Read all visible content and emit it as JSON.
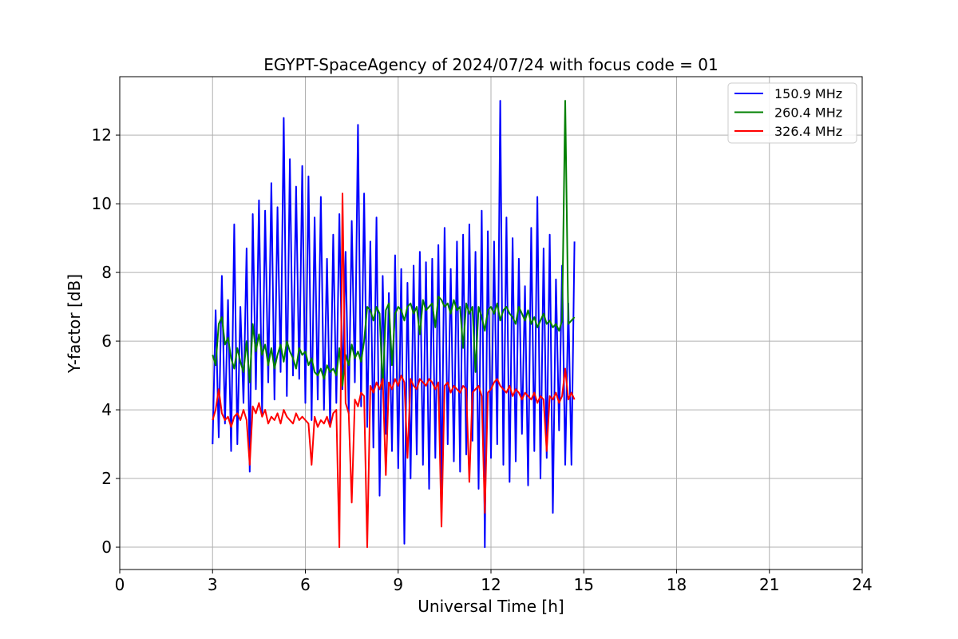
{
  "chart_data": {
    "type": "line",
    "title": "EGYPT-SpaceAgency of 2024/07/24 with focus code = 01",
    "xlabel": "Universal Time [h]",
    "ylabel": "Y-factor [dB]",
    "xlim": [
      0,
      24
    ],
    "ylim": [
      -0.65,
      13.7
    ],
    "xticks": [
      0,
      3,
      6,
      9,
      12,
      15,
      18,
      21,
      24
    ],
    "yticks": [
      0,
      2,
      4,
      6,
      8,
      10,
      12
    ],
    "grid": true,
    "legend_position": "top-right",
    "series": [
      {
        "name": "150.9 MHz",
        "color": "#0000ff",
        "x": [
          3.0,
          3.1,
          3.2,
          3.3,
          3.4,
          3.5,
          3.6,
          3.7,
          3.8,
          3.9,
          4.0,
          4.1,
          4.2,
          4.3,
          4.4,
          4.5,
          4.6,
          4.7,
          4.8,
          4.9,
          5.0,
          5.1,
          5.2,
          5.3,
          5.4,
          5.5,
          5.6,
          5.7,
          5.8,
          5.9,
          6.0,
          6.1,
          6.2,
          6.3,
          6.4,
          6.5,
          6.6,
          6.7,
          6.8,
          6.9,
          7.0,
          7.1,
          7.2,
          7.3,
          7.4,
          7.5,
          7.6,
          7.7,
          7.8,
          7.9,
          8.0,
          8.1,
          8.2,
          8.3,
          8.4,
          8.5,
          8.6,
          8.7,
          8.8,
          8.9,
          9.0,
          9.1,
          9.2,
          9.3,
          9.4,
          9.5,
          9.6,
          9.7,
          9.8,
          9.9,
          10.0,
          10.1,
          10.2,
          10.3,
          10.4,
          10.5,
          10.6,
          10.7,
          10.8,
          10.9,
          11.0,
          11.1,
          11.2,
          11.3,
          11.4,
          11.5,
          11.6,
          11.7,
          11.8,
          11.9,
          12.0,
          12.1,
          12.2,
          12.3,
          12.4,
          12.5,
          12.6,
          12.7,
          12.8,
          12.9,
          13.0,
          13.1,
          13.2,
          13.3,
          13.4,
          13.5,
          13.6,
          13.7,
          13.8,
          13.9,
          14.0,
          14.1,
          14.2,
          14.3,
          14.4,
          14.5,
          14.6,
          14.7
        ],
        "y": [
          3.0,
          6.9,
          3.2,
          7.9,
          3.6,
          7.2,
          2.8,
          9.4,
          3.0,
          7.0,
          4.2,
          8.7,
          2.2,
          9.7,
          4.6,
          10.1,
          3.9,
          9.8,
          4.8,
          10.6,
          4.3,
          9.9,
          5.1,
          12.5,
          4.4,
          11.3,
          5.0,
          10.5,
          4.9,
          11.1,
          4.2,
          10.8,
          3.7,
          9.6,
          4.3,
          10.2,
          4.0,
          8.4,
          3.5,
          9.1,
          4.2,
          9.7,
          4.6,
          8.6,
          3.9,
          9.5,
          4.8,
          12.3,
          4.1,
          10.3,
          3.5,
          8.9,
          2.9,
          9.6,
          1.5,
          7.9,
          3.3,
          7.4,
          2.8,
          8.5,
          2.3,
          8.1,
          0.1,
          7.7,
          2.0,
          8.2,
          2.7,
          8.6,
          2.4,
          8.3,
          1.7,
          8.4,
          2.6,
          8.8,
          1.6,
          9.3,
          3.0,
          8.1,
          2.5,
          8.9,
          2.2,
          9.1,
          2.7,
          9.4,
          3.1,
          8.6,
          1.7,
          9.8,
          0.0,
          9.2,
          2.6,
          8.9,
          3.0,
          13.0,
          2.4,
          9.6,
          1.9,
          9.0,
          2.5,
          8.4,
          3.3,
          7.6,
          1.8,
          9.3,
          2.8,
          10.2,
          2.0,
          8.7,
          2.6,
          9.1,
          1.0,
          7.8,
          3.4,
          8.2,
          2.4,
          7.1,
          2.4,
          8.9
        ]
      },
      {
        "name": "260.4 MHz",
        "color": "#008000",
        "x": [
          3.0,
          3.1,
          3.2,
          3.3,
          3.4,
          3.5,
          3.6,
          3.7,
          3.8,
          3.9,
          4.0,
          4.1,
          4.2,
          4.3,
          4.4,
          4.5,
          4.6,
          4.7,
          4.8,
          4.9,
          5.0,
          5.1,
          5.2,
          5.3,
          5.4,
          5.5,
          5.6,
          5.7,
          5.8,
          5.9,
          6.0,
          6.1,
          6.2,
          6.3,
          6.4,
          6.5,
          6.6,
          6.7,
          6.8,
          6.9,
          7.0,
          7.1,
          7.2,
          7.3,
          7.4,
          7.5,
          7.6,
          7.7,
          7.8,
          7.9,
          8.0,
          8.1,
          8.2,
          8.3,
          8.4,
          8.5,
          8.6,
          8.7,
          8.8,
          8.9,
          9.0,
          9.1,
          9.2,
          9.3,
          9.4,
          9.5,
          9.6,
          9.7,
          9.8,
          9.9,
          10.0,
          10.1,
          10.2,
          10.3,
          10.4,
          10.5,
          10.6,
          10.7,
          10.8,
          10.9,
          11.0,
          11.1,
          11.2,
          11.3,
          11.4,
          11.5,
          11.6,
          11.7,
          11.8,
          11.9,
          12.0,
          12.1,
          12.2,
          12.3,
          12.4,
          12.5,
          12.6,
          12.7,
          12.8,
          12.9,
          13.0,
          13.1,
          13.2,
          13.3,
          13.4,
          13.5,
          13.6,
          13.7,
          13.8,
          13.9,
          14.0,
          14.1,
          14.2,
          14.3,
          14.4,
          14.5,
          14.6,
          14.7
        ],
        "y": [
          5.6,
          5.3,
          6.5,
          6.7,
          5.9,
          6.1,
          5.5,
          5.2,
          5.8,
          5.4,
          5.1,
          6.0,
          4.8,
          6.5,
          5.7,
          6.2,
          5.6,
          5.9,
          5.3,
          5.8,
          5.2,
          5.6,
          5.9,
          5.4,
          6.0,
          5.7,
          5.5,
          5.2,
          5.8,
          5.6,
          5.7,
          5.3,
          5.5,
          5.1,
          5.0,
          5.2,
          4.9,
          5.3,
          5.1,
          5.2,
          5.0,
          5.8,
          4.7,
          5.6,
          5.3,
          5.9,
          5.5,
          5.7,
          5.4,
          6.0,
          7.0,
          6.9,
          6.6,
          7.0,
          6.8,
          4.6,
          6.9,
          7.1,
          5.3,
          6.8,
          7.0,
          6.9,
          6.6,
          7.0,
          7.1,
          6.8,
          7.0,
          6.2,
          7.2,
          6.9,
          7.0,
          7.1,
          6.4,
          7.3,
          7.2,
          7.0,
          7.1,
          6.8,
          7.2,
          6.9,
          7.0,
          5.8,
          7.1,
          6.8,
          7.0,
          5.1,
          7.0,
          6.7,
          6.3,
          6.9,
          7.0,
          6.8,
          7.1,
          6.6,
          6.9,
          7.0,
          6.8,
          6.7,
          6.5,
          7.0,
          6.8,
          6.6,
          6.9,
          6.5,
          6.7,
          6.4,
          6.6,
          6.8,
          6.5,
          6.6,
          6.4,
          6.5,
          6.3,
          6.6,
          13.0,
          6.5,
          6.6,
          6.7
        ]
      },
      {
        "name": "326.4 MHz",
        "color": "#ff0000",
        "x": [
          3.0,
          3.1,
          3.2,
          3.3,
          3.4,
          3.5,
          3.6,
          3.7,
          3.8,
          3.9,
          4.0,
          4.1,
          4.2,
          4.3,
          4.4,
          4.5,
          4.6,
          4.7,
          4.8,
          4.9,
          5.0,
          5.1,
          5.2,
          5.3,
          5.4,
          5.5,
          5.6,
          5.7,
          5.8,
          5.9,
          6.0,
          6.1,
          6.2,
          6.3,
          6.4,
          6.5,
          6.6,
          6.7,
          6.8,
          6.9,
          7.0,
          7.1,
          7.2,
          7.3,
          7.4,
          7.5,
          7.6,
          7.7,
          7.8,
          7.9,
          8.0,
          8.1,
          8.2,
          8.3,
          8.4,
          8.5,
          8.6,
          8.7,
          8.8,
          8.9,
          9.0,
          9.1,
          9.2,
          9.3,
          9.4,
          9.5,
          9.6,
          9.7,
          9.8,
          9.9,
          10.0,
          10.1,
          10.2,
          10.3,
          10.4,
          10.5,
          10.6,
          10.7,
          10.8,
          10.9,
          11.0,
          11.1,
          11.2,
          11.3,
          11.4,
          11.5,
          11.6,
          11.7,
          11.8,
          11.9,
          12.0,
          12.1,
          12.2,
          12.3,
          12.4,
          12.5,
          12.6,
          12.7,
          12.8,
          12.9,
          13.0,
          13.1,
          13.2,
          13.3,
          13.4,
          13.5,
          13.6,
          13.7,
          13.8,
          13.9,
          14.0,
          14.1,
          14.2,
          14.3,
          14.4,
          14.5,
          14.6,
          14.7
        ],
        "y": [
          3.7,
          4.0,
          4.6,
          3.9,
          3.7,
          3.8,
          3.5,
          3.8,
          3.9,
          3.7,
          4.0,
          3.7,
          2.4,
          4.1,
          3.9,
          4.2,
          3.8,
          4.0,
          3.6,
          3.8,
          3.7,
          3.9,
          3.6,
          4.0,
          3.8,
          3.7,
          3.6,
          3.9,
          3.7,
          3.8,
          3.7,
          3.6,
          2.4,
          3.8,
          3.5,
          3.7,
          3.6,
          3.8,
          3.5,
          3.9,
          4.0,
          0.0,
          10.3,
          4.2,
          3.9,
          1.3,
          4.3,
          4.1,
          4.5,
          4.4,
          0.0,
          4.7,
          4.5,
          4.8,
          4.6,
          4.9,
          2.1,
          4.8,
          4.6,
          4.9,
          4.7,
          5.0,
          4.8,
          2.6,
          4.9,
          4.7,
          4.6,
          4.9,
          4.8,
          4.7,
          4.9,
          4.8,
          4.6,
          4.8,
          0.6,
          4.7,
          4.8,
          4.5,
          4.7,
          4.6,
          4.5,
          4.7,
          4.6,
          1.9,
          4.5,
          4.6,
          4.7,
          4.4,
          1.0,
          4.5,
          4.6,
          4.8,
          4.9,
          4.7,
          4.6,
          4.5,
          4.7,
          4.4,
          4.6,
          4.5,
          4.3,
          4.5,
          4.4,
          4.3,
          4.5,
          4.2,
          4.4,
          4.3,
          2.8,
          4.4,
          4.3,
          4.5,
          4.2,
          4.4,
          5.2,
          4.3,
          4.5,
          4.3
        ]
      }
    ]
  }
}
